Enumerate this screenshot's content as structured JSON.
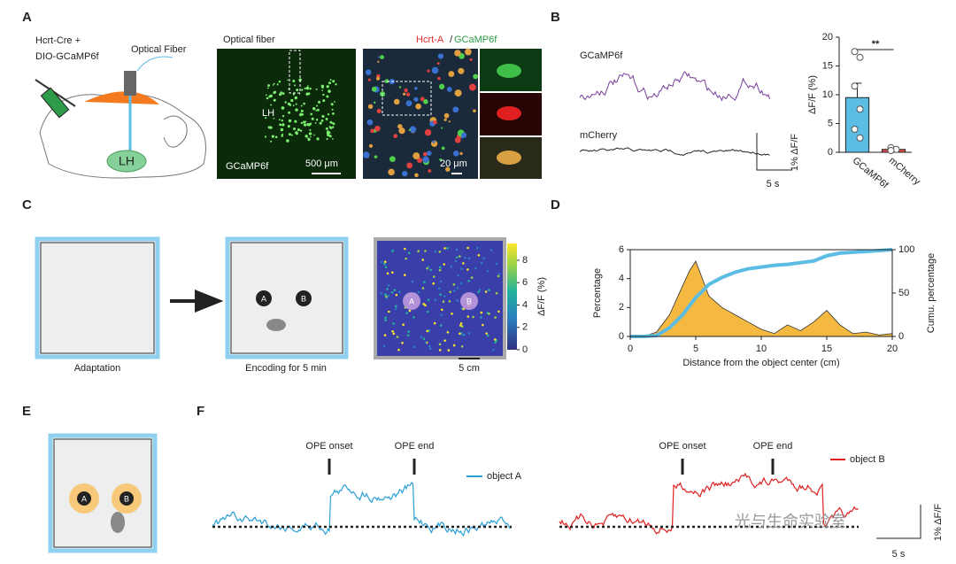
{
  "panels": {
    "A": {
      "label": "A",
      "construct": [
        "Hcrt-Cre +",
        "DIO-GCaMP6f"
      ],
      "fiber": "Optical Fiber",
      "region": "LH",
      "image1": {
        "caption": "Optical fiber",
        "region": "LH",
        "stain": "GCaMP6f",
        "scale": "500 μm"
      },
      "image2": {
        "stain1": "Hcrt-A",
        "sep": "/",
        "stain2": "GCaMP6f",
        "scale": "20 μm"
      }
    },
    "B": {
      "label": "B",
      "trace1": "GCaMP6f",
      "trace2": "mCherry",
      "scale_y": "1% ΔF/F",
      "scale_x": "5 s"
    },
    "C": {
      "label": "C",
      "box1": "Adaptation",
      "box2": "Encoding for 5 min",
      "objA": "A",
      "objB": "B",
      "heatA": "A",
      "heatB": "B",
      "scale": "5 cm"
    },
    "D": {
      "label": "D"
    },
    "E": {
      "label": "E",
      "objA": "A",
      "objB": "B"
    },
    "F": {
      "label": "F",
      "left": {
        "onset": "OPE onset",
        "end": "OPE end",
        "legend": "object A"
      },
      "right": {
        "onset": "OPE onset",
        "end": "OPE end",
        "legend": "object B"
      },
      "scale_y": "1% ΔF/F",
      "scale_x": "5 s"
    },
    "watermark": "光与生命实验室"
  },
  "chart_data": [
    {
      "type": "bar",
      "ylabel": "ΔF/F (%)",
      "categories": [
        "GCaMP6f",
        "mCherry"
      ],
      "values": [
        9.5,
        0.5
      ],
      "errors": [
        2.5,
        0.2
      ],
      "colors": [
        "#5bbce4",
        "#e0504a"
      ],
      "points": [
        [
          17.5,
          16.5,
          11.5,
          7.5,
          4,
          2.5
        ],
        [
          0.8,
          0.5,
          0.3
        ]
      ],
      "ylim": [
        0,
        20
      ],
      "yticks": [
        0,
        5,
        10,
        15,
        20
      ],
      "annotation": "**"
    },
    {
      "type": "line",
      "xlabel": "Distance from the object center  (cm)",
      "ylabel": "Percentage",
      "y2label": "Cumu. percentage",
      "x": [
        0,
        1,
        2,
        3,
        4,
        4.5,
        5,
        5.5,
        6,
        7,
        8,
        9,
        10,
        11,
        12,
        13,
        14,
        15,
        16,
        17,
        18,
        19,
        20
      ],
      "series": [
        {
          "name": "Percentage",
          "color": "#f5b942",
          "fill": true,
          "values": [
            0,
            0,
            0.3,
            1.5,
            3.5,
            4.5,
            5.2,
            4.0,
            2.8,
            2.0,
            1.5,
            1.0,
            0.5,
            0.2,
            0.8,
            0.4,
            1.0,
            1.8,
            0.8,
            0.2,
            0.3,
            0.1,
            0.2
          ]
        },
        {
          "name": "Cumu. percentage",
          "color": "#5bbce4",
          "axis": "y2",
          "values": [
            0,
            0,
            1,
            10,
            25,
            35,
            45,
            52,
            60,
            68,
            74,
            78,
            80,
            82,
            83,
            85,
            87,
            93,
            96,
            97,
            98,
            99,
            100
          ]
        }
      ],
      "xlim": [
        0,
        20
      ],
      "xticks": [
        0,
        5,
        10,
        15,
        20
      ],
      "ylim": [
        0,
        6
      ],
      "yticks": [
        0,
        2,
        4,
        6
      ],
      "y2lim": [
        0,
        100
      ],
      "y2ticks": [
        0,
        50,
        100
      ]
    },
    {
      "type": "colorbar",
      "label": "ΔF/F (%)",
      "clim": [
        0,
        9.5
      ],
      "ticks": [
        0,
        2,
        4,
        6,
        8
      ]
    }
  ]
}
